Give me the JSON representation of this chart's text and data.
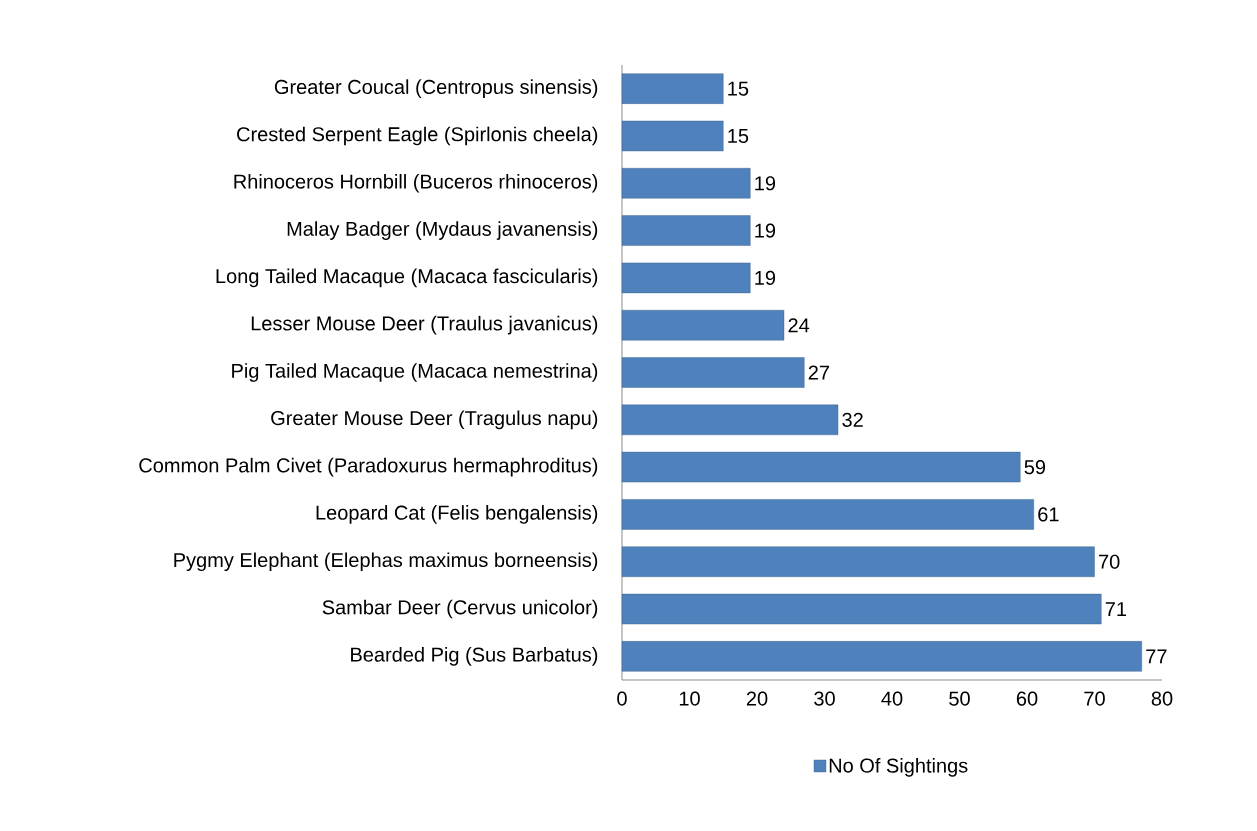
{
  "chart_data": {
    "type": "bar",
    "orientation": "horizontal",
    "categories": [
      "Greater Coucal (Centropus sinensis)",
      "Crested Serpent Eagle (Spirlonis cheela)",
      "Rhinoceros Hornbill (Buceros rhinoceros)",
      "Malay Badger (Mydaus javanensis)",
      "Long Tailed Macaque (Macaca fascicularis)",
      "Lesser Mouse Deer (Traulus javanicus)",
      "Pig Tailed Macaque (Macaca nemestrina)",
      "Greater Mouse Deer (Tragulus napu)",
      "Common Palm Civet (Paradoxurus hermaphroditus)",
      "Leopard Cat (Felis bengalensis)",
      "Pygmy Elephant (Elephas maximus borneensis)",
      "Sambar Deer (Cervus unicolor)",
      "Bearded Pig (Sus Barbatus)"
    ],
    "series": [
      {
        "name": "No Of Sightings",
        "color": "#4f81bd",
        "values": [
          15,
          15,
          19,
          19,
          19,
          24,
          27,
          32,
          59,
          61,
          70,
          71,
          77
        ]
      }
    ],
    "xlim": [
      0,
      80
    ],
    "xticks": [
      0,
      10,
      20,
      30,
      40,
      50,
      60,
      70,
      80
    ],
    "data_labels": true,
    "legend": "bottom"
  }
}
